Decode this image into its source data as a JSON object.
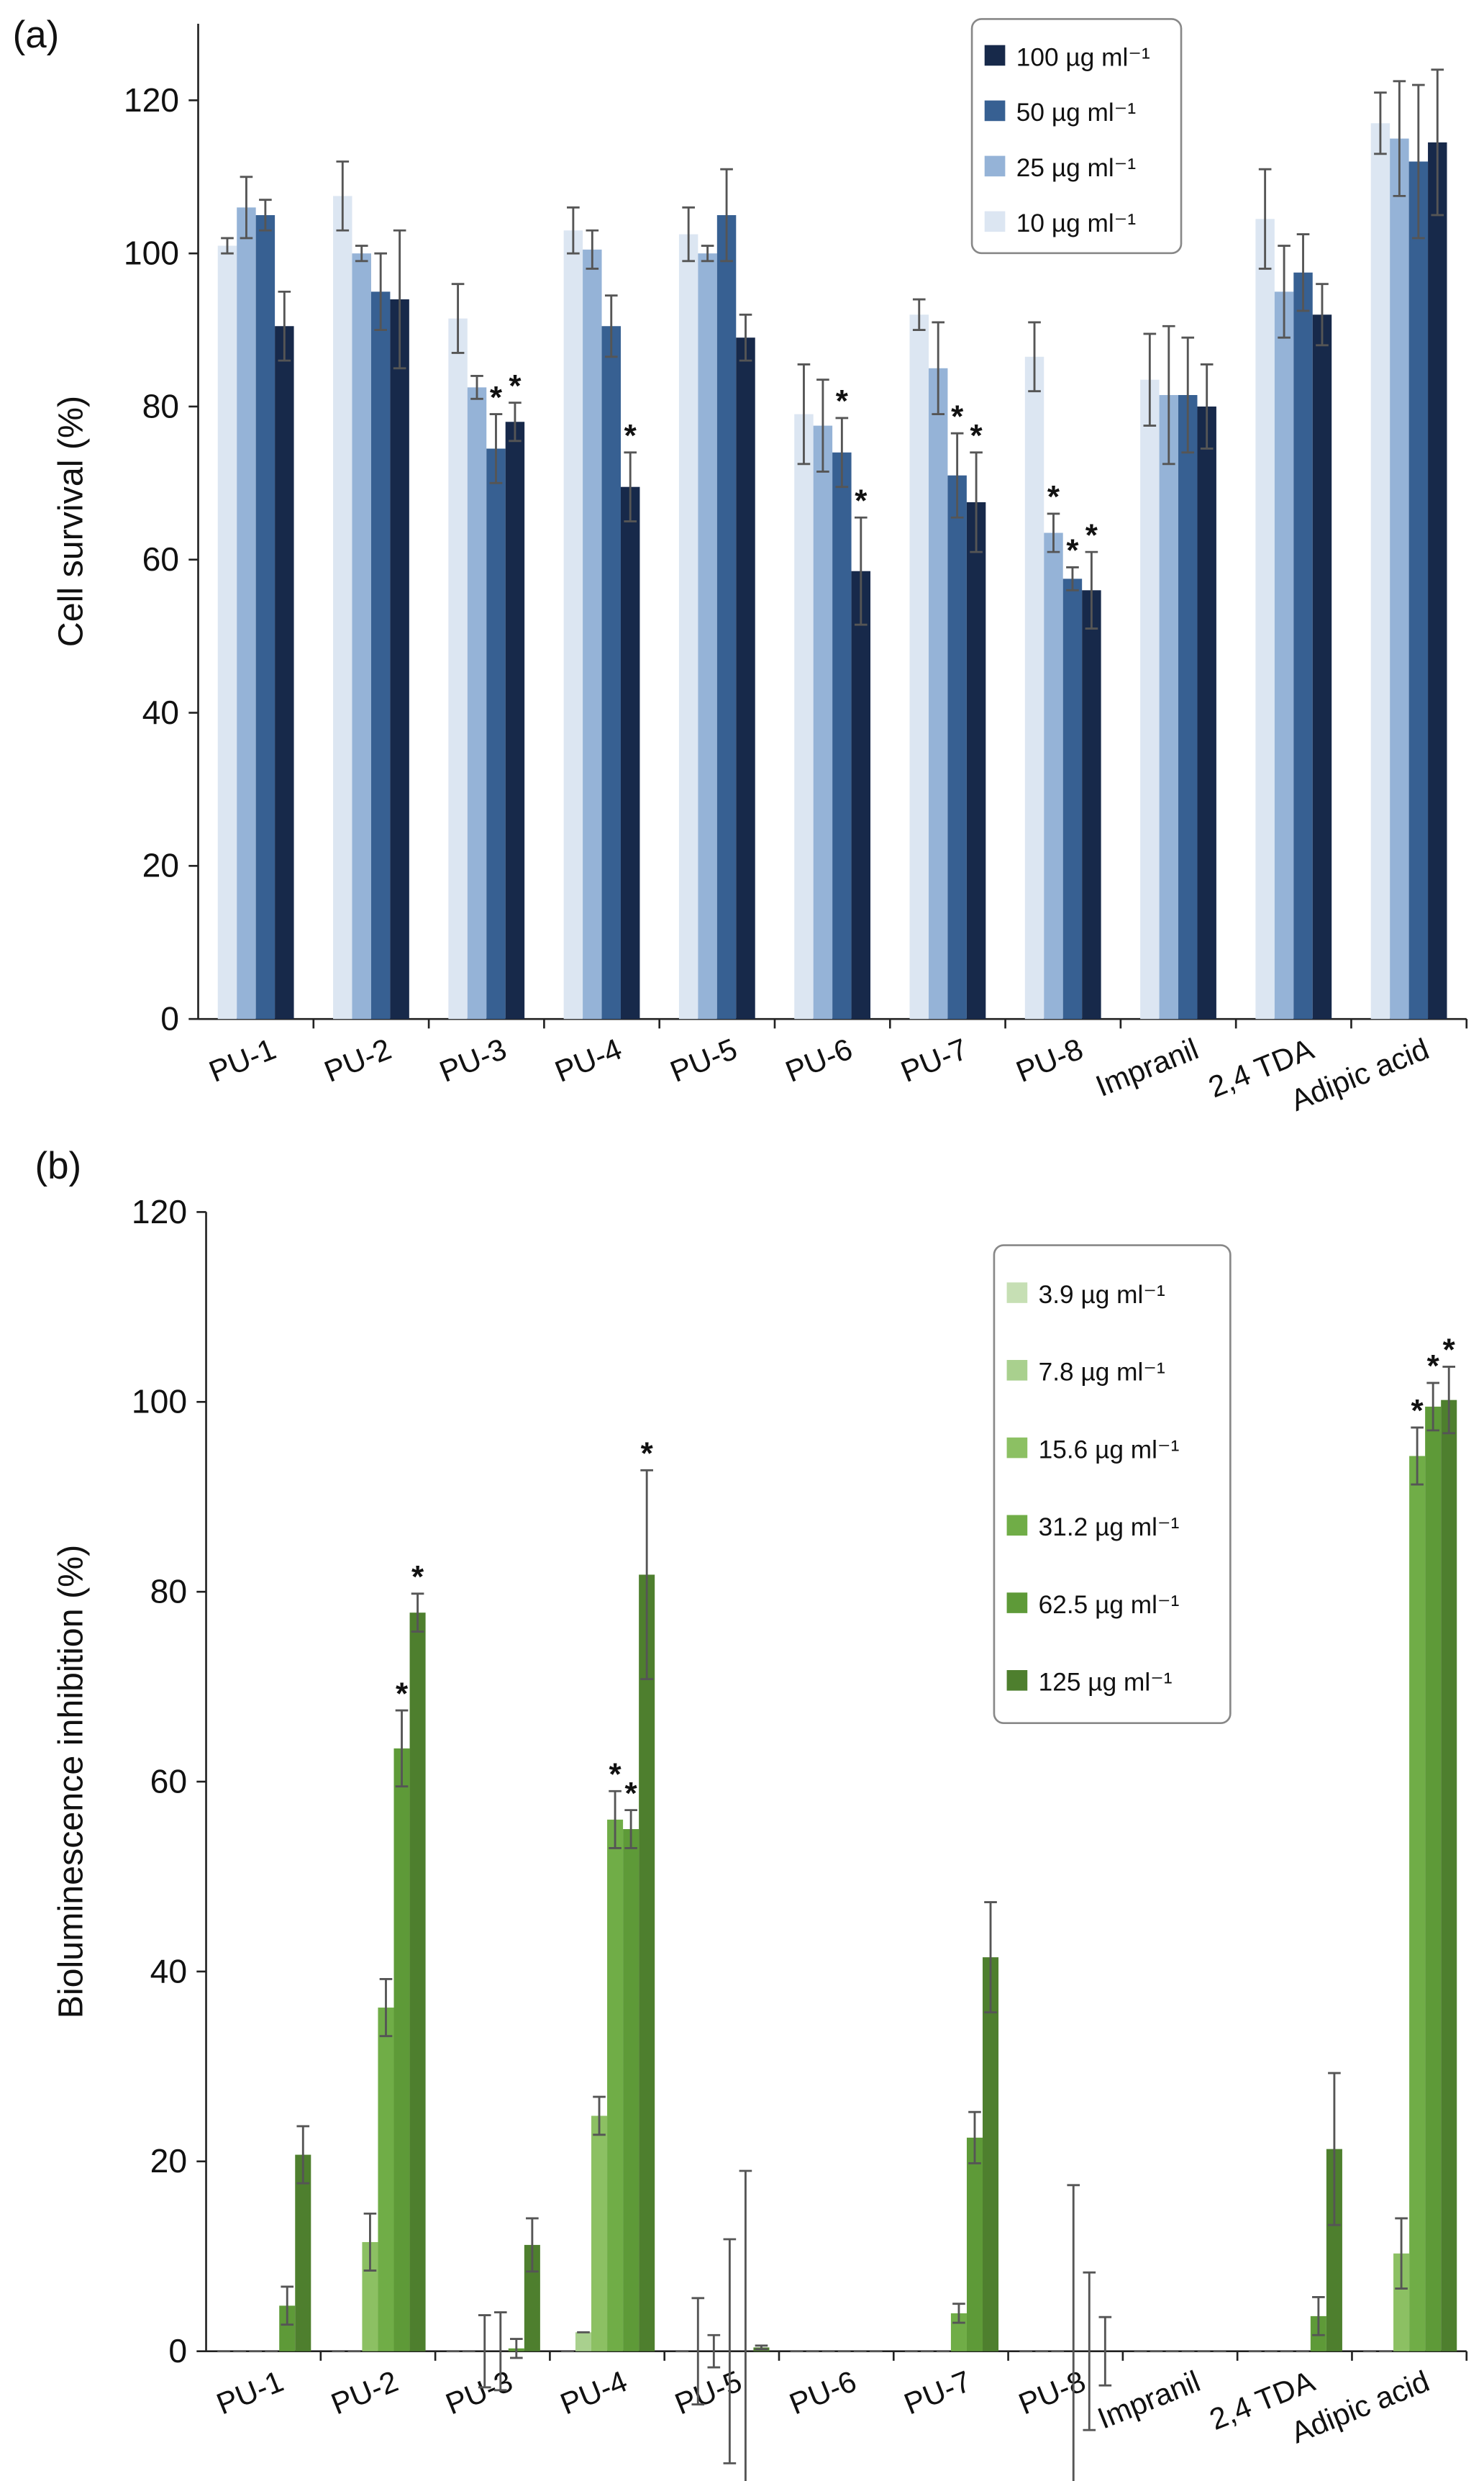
{
  "chart_data": [
    {
      "type": "bar",
      "panel": "(a)",
      "y_label": "Cell survival (%)",
      "categories": [
        "PU-1",
        "PU-2",
        "PU-3",
        "PU-4",
        "PU-5",
        "PU-6",
        "PU-7",
        "PU-8",
        "Impranil",
        "2,4 TDA",
        "Adipic acid"
      ],
      "ylim": [
        0,
        130
      ],
      "yticks": [
        0,
        20,
        40,
        60,
        80,
        100,
        120
      ],
      "series": [
        {
          "name": "10 µg ml⁻¹",
          "color": "#dce6f2",
          "values": [
            101,
            107.5,
            91.5,
            103,
            102.5,
            79,
            92,
            86.5,
            83.5,
            104.5,
            117
          ],
          "errors": [
            1,
            4.5,
            4.5,
            3,
            3.5,
            6.5,
            2,
            4.5,
            6,
            6.5,
            4
          ],
          "annotations": [
            null,
            null,
            null,
            null,
            null,
            null,
            null,
            null,
            null,
            null,
            null
          ]
        },
        {
          "name": "25 µg ml⁻¹",
          "color": "#95b3d7",
          "values": [
            106,
            100,
            82.5,
            100.5,
            100,
            77.5,
            85,
            63.5,
            81.5,
            95,
            115
          ],
          "errors": [
            4,
            1,
            1.5,
            2.5,
            1,
            6,
            6,
            2.5,
            9,
            6,
            7.5
          ],
          "annotations": [
            null,
            null,
            null,
            null,
            null,
            null,
            null,
            "*",
            null,
            null,
            null
          ]
        },
        {
          "name": "50 µg ml⁻¹",
          "color": "#376092",
          "values": [
            105,
            95,
            74.5,
            90.5,
            105,
            74,
            71,
            57.5,
            81.5,
            97.5,
            112
          ],
          "errors": [
            2,
            5,
            4.5,
            4,
            6,
            4.5,
            5.5,
            1.5,
            7.5,
            5,
            10
          ],
          "annotations": [
            null,
            null,
            "*",
            null,
            null,
            "*",
            "*",
            "*",
            null,
            null,
            null
          ]
        },
        {
          "name": "100 µg ml⁻¹",
          "color": "#17294a",
          "values": [
            90.5,
            94,
            78,
            69.5,
            89,
            58.5,
            67.5,
            56,
            80,
            92,
            114.5
          ],
          "errors": [
            4.5,
            9,
            2.5,
            4.5,
            3,
            7,
            6.5,
            5,
            5.5,
            4,
            9.5
          ],
          "annotations": [
            null,
            null,
            "*",
            "*",
            null,
            "*",
            "*",
            "*",
            null,
            null,
            null
          ]
        }
      ]
    },
    {
      "type": "bar",
      "panel": "(b)",
      "y_label": "Bioluminescence inhibition (%)",
      "categories": [
        "PU-1",
        "PU-2",
        "PU-3",
        "PU-4",
        "PU-5",
        "PU-6",
        "PU-7",
        "PU-8",
        "Impranil",
        "2,4 TDA",
        "Adipic acid"
      ],
      "ylim": [
        0,
        120
      ],
      "yticks": [
        0,
        20,
        40,
        60,
        80,
        100,
        120
      ],
      "series": [
        {
          "name": "3.9 µg ml⁻¹",
          "color": "#c6dfb4",
          "values": [
            0,
            0,
            0,
            0,
            0,
            0,
            0,
            0,
            0,
            0,
            0
          ],
          "errors": [
            0,
            0,
            0,
            0,
            0,
            0,
            0,
            0,
            0,
            0,
            0
          ],
          "annotations": [
            null,
            null,
            null,
            null,
            null,
            null,
            null,
            null,
            null,
            null,
            null
          ]
        },
        {
          "name": "7.8 µg ml⁻¹",
          "color": "#a9d08e",
          "values": [
            0,
            0,
            0,
            2,
            0,
            0,
            0,
            0,
            0,
            0,
            0
          ],
          "errors": [
            0,
            0,
            0,
            0,
            5.6,
            0,
            0,
            0,
            0,
            0,
            0
          ],
          "annotations": [
            null,
            null,
            null,
            null,
            null,
            null,
            null,
            null,
            null,
            null,
            null
          ]
        },
        {
          "name": "15.6 µg ml⁻¹",
          "color": "#8cc063",
          "values": [
            0,
            11.5,
            0,
            24.8,
            0,
            0,
            0,
            0,
            0,
            0,
            10.3
          ],
          "errors": [
            0,
            3,
            3.8,
            2,
            1.7,
            0,
            0,
            0,
            0,
            0,
            3.7
          ],
          "annotations": [
            null,
            null,
            null,
            null,
            null,
            null,
            null,
            null,
            null,
            null,
            null
          ]
        },
        {
          "name": "31.2 µg ml⁻¹",
          "color": "#70ad47",
          "values": [
            0,
            36.2,
            0,
            56,
            0,
            0,
            4,
            0,
            0,
            0,
            94.3
          ],
          "errors": [
            0,
            3,
            4.1,
            3,
            11.8,
            0,
            1,
            17.5,
            0,
            0,
            3
          ],
          "annotations": [
            null,
            null,
            null,
            "*",
            null,
            null,
            null,
            null,
            null,
            null,
            "*"
          ]
        },
        {
          "name": "62.5 µg ml⁻¹",
          "color": "#5e9a38",
          "values": [
            4.8,
            63.5,
            0.3,
            55,
            0,
            0,
            22.5,
            0,
            0,
            3.7,
            99.5
          ],
          "errors": [
            2,
            4,
            1,
            2,
            19,
            0,
            2.7,
            8.3,
            0,
            2,
            2.5
          ],
          "annotations": [
            null,
            "*",
            null,
            "*",
            null,
            null,
            null,
            null,
            null,
            null,
            "*"
          ]
        },
        {
          "name": "125 µg ml⁻¹",
          "color": "#4e7f2e",
          "values": [
            20.7,
            77.8,
            11.2,
            81.8,
            0.4,
            0,
            41.5,
            0,
            0,
            21.3,
            100.2
          ],
          "errors": [
            3,
            2,
            2.8,
            11,
            0.2,
            0,
            5.8,
            3.6,
            0,
            8,
            3.5
          ],
          "annotations": [
            null,
            "*",
            null,
            "*",
            null,
            null,
            null,
            null,
            null,
            null,
            "*"
          ]
        }
      ]
    }
  ]
}
